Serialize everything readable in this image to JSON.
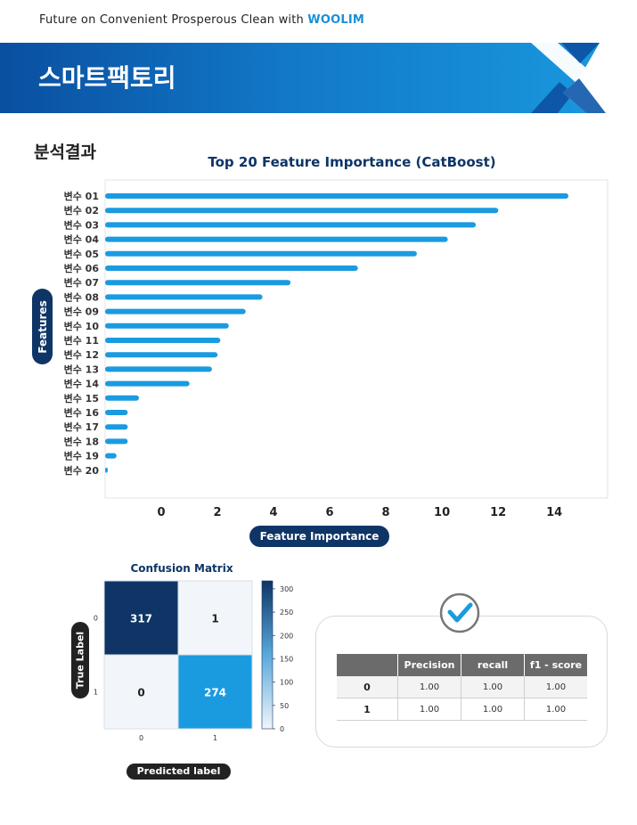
{
  "header": {
    "tagline": "Future on Convenient Prosperous Clean with",
    "brand": "WOOLIM",
    "banner_title": "스마트팩토리",
    "colors": {
      "banner_dark": "#0a4fa0",
      "banner_light": "#1a9be0",
      "accent": "#1a8fd8"
    }
  },
  "section": {
    "title": "분석결과"
  },
  "chart_data": [
    {
      "type": "bar",
      "orientation": "horizontal",
      "title": "Top 20 Feature Importance (CatBoost)",
      "xlabel": "Feature Importance",
      "ylabel": "Features",
      "categories": [
        "변수 01",
        "변수 02",
        "변수 03",
        "변수 04",
        "변수 05",
        "변수 06",
        "변수 07",
        "변수 08",
        "변수 09",
        "변수 10",
        "변수 11",
        "변수 12",
        "변수 13",
        "변수 14",
        "변수 15",
        "변수 16",
        "변수 17",
        "변수 18",
        "변수 19",
        "변수 20"
      ],
      "values": [
        14.6,
        12.1,
        11.3,
        10.3,
        9.2,
        7.1,
        4.7,
        3.7,
        3.1,
        2.5,
        2.2,
        2.1,
        1.9,
        1.1,
        -0.7,
        -1.1,
        -1.1,
        -1.1,
        -1.5,
        -1.9
      ],
      "xticks": [
        0,
        2,
        4,
        6,
        8,
        10,
        12,
        14
      ],
      "xlim": [
        -2,
        15.9
      ],
      "grid": false,
      "color": "#1a9be0"
    },
    {
      "type": "heatmap",
      "title": "Confusion Matrix",
      "xlabel": "Predicted label",
      "ylabel": "True Label",
      "x_categories": [
        "0",
        "1"
      ],
      "y_categories": [
        "0",
        "1"
      ],
      "values": [
        [
          317,
          1
        ],
        [
          0,
          274
        ]
      ],
      "colorbar": {
        "ticks": [
          0,
          50,
          100,
          150,
          200,
          250,
          300
        ],
        "range": [
          0,
          317
        ]
      },
      "colors": {
        "low": "#f2f6fa",
        "high": "#0e3566",
        "mid": "#1a9be0"
      }
    }
  ],
  "metrics": {
    "headers": [
      "",
      "Precision",
      "recall",
      "f1 - score"
    ],
    "rows": [
      {
        "label": "0",
        "precision": "1.00",
        "recall": "1.00",
        "f1": "1.00"
      },
      {
        "label": "1",
        "precision": "1.00",
        "recall": "1.00",
        "f1": "1.00"
      }
    ],
    "icon": "check-circle-icon"
  }
}
